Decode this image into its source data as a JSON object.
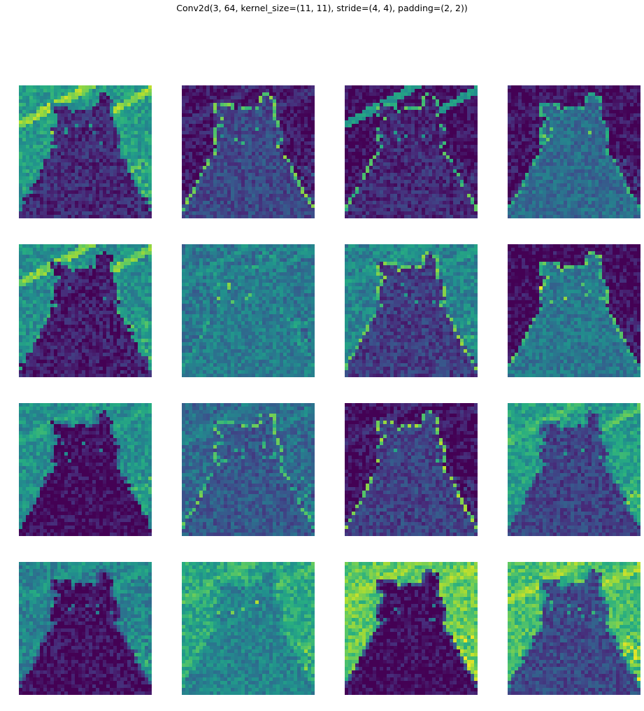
{
  "figure": {
    "title": "Conv2d(3, 64, kernel_size=(11, 11), stride=(4, 4), padding=(2, 2))",
    "rows": 4,
    "cols": 4,
    "colormap": {
      "name": "viridis",
      "stops": [
        "#440154",
        "#472c7a",
        "#3b518b",
        "#2c718e",
        "#21908d",
        "#27ad81",
        "#5cc863",
        "#aadc32",
        "#fde725"
      ]
    },
    "panels": [
      {
        "index": 1,
        "background": 0.55,
        "cat": 0.12,
        "stripes": 0.85,
        "edges": 0.5
      },
      {
        "index": 2,
        "background": 0.05,
        "cat": 0.22,
        "stripes": 0.15,
        "edges": 0.75
      },
      {
        "index": 3,
        "background": 0.03,
        "cat": 0.12,
        "stripes": 0.55,
        "edges": 0.7
      },
      {
        "index": 4,
        "background": 0.04,
        "cat": 0.35,
        "stripes": 0.08,
        "edges": 0.6
      },
      {
        "index": 5,
        "background": 0.5,
        "cat": 0.08,
        "stripes": 0.8,
        "edges": 0.6
      },
      {
        "index": 6,
        "background": 0.4,
        "cat": 0.42,
        "stripes": 0.5,
        "edges": 0.55
      },
      {
        "index": 7,
        "background": 0.45,
        "cat": 0.18,
        "stripes": 0.55,
        "edges": 0.75
      },
      {
        "index": 8,
        "background": 0.02,
        "cat": 0.4,
        "stripes": 0.02,
        "edges": 0.7
      },
      {
        "index": 9,
        "background": 0.5,
        "cat": 0.03,
        "stripes": 0.6,
        "edges": 0.4
      },
      {
        "index": 10,
        "background": 0.35,
        "cat": 0.28,
        "stripes": 0.45,
        "edges": 0.7
      },
      {
        "index": 11,
        "background": 0.03,
        "cat": 0.2,
        "stripes": 0.12,
        "edges": 0.8
      },
      {
        "index": 12,
        "background": 0.55,
        "cat": 0.2,
        "stripes": 0.7,
        "edges": 0.5
      },
      {
        "index": 13,
        "background": 0.45,
        "cat": 0.04,
        "stripes": 0.55,
        "edges": 0.3
      },
      {
        "index": 14,
        "background": 0.6,
        "cat": 0.45,
        "stripes": 0.7,
        "edges": 0.6
      },
      {
        "index": 15,
        "background": 0.75,
        "cat": 0.03,
        "stripes": 0.85,
        "edges": 0.3
      },
      {
        "index": 16,
        "background": 0.7,
        "cat": 0.22,
        "stripes": 0.85,
        "edges": 0.5
      }
    ]
  }
}
